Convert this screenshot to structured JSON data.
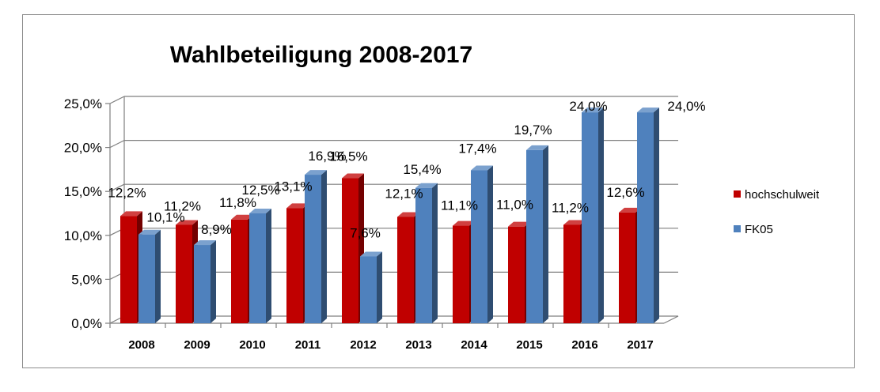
{
  "chart_data": {
    "type": "bar",
    "title": "Wahlbeteiligung 2008-2017",
    "categories": [
      "2008",
      "2009",
      "2010",
      "2011",
      "2012",
      "2013",
      "2014",
      "2015",
      "2016",
      "2017"
    ],
    "series": [
      {
        "name": "hochschulweit",
        "color": "#c00000",
        "values": [
          12.2,
          11.2,
          11.8,
          13.1,
          16.5,
          12.1,
          11.1,
          11.0,
          11.2,
          12.6
        ],
        "labels": [
          "12,2%",
          "11,2%",
          "11,8%",
          "13,1%",
          "16,5%",
          "12,1%",
          "11,1%",
          "11,0%",
          "11,2%",
          "12,6%"
        ]
      },
      {
        "name": "FK05",
        "color": "#4f81bd",
        "values": [
          10.1,
          8.9,
          12.5,
          16.9,
          7.6,
          15.4,
          17.4,
          19.7,
          24.0,
          24.0
        ],
        "labels": [
          "10,1%",
          "8,9%",
          "12,5%",
          "16,9%",
          "7,6%",
          "15,4%",
          "17,4%",
          "19,7%",
          "24,0%",
          "24,0%"
        ]
      }
    ],
    "yticks": [
      "0,0%",
      "5,0%",
      "10,0%",
      "15,0%",
      "20,0%",
      "25,0%"
    ],
    "ylim": [
      0,
      25
    ],
    "grid": true,
    "legend_position": "right"
  }
}
